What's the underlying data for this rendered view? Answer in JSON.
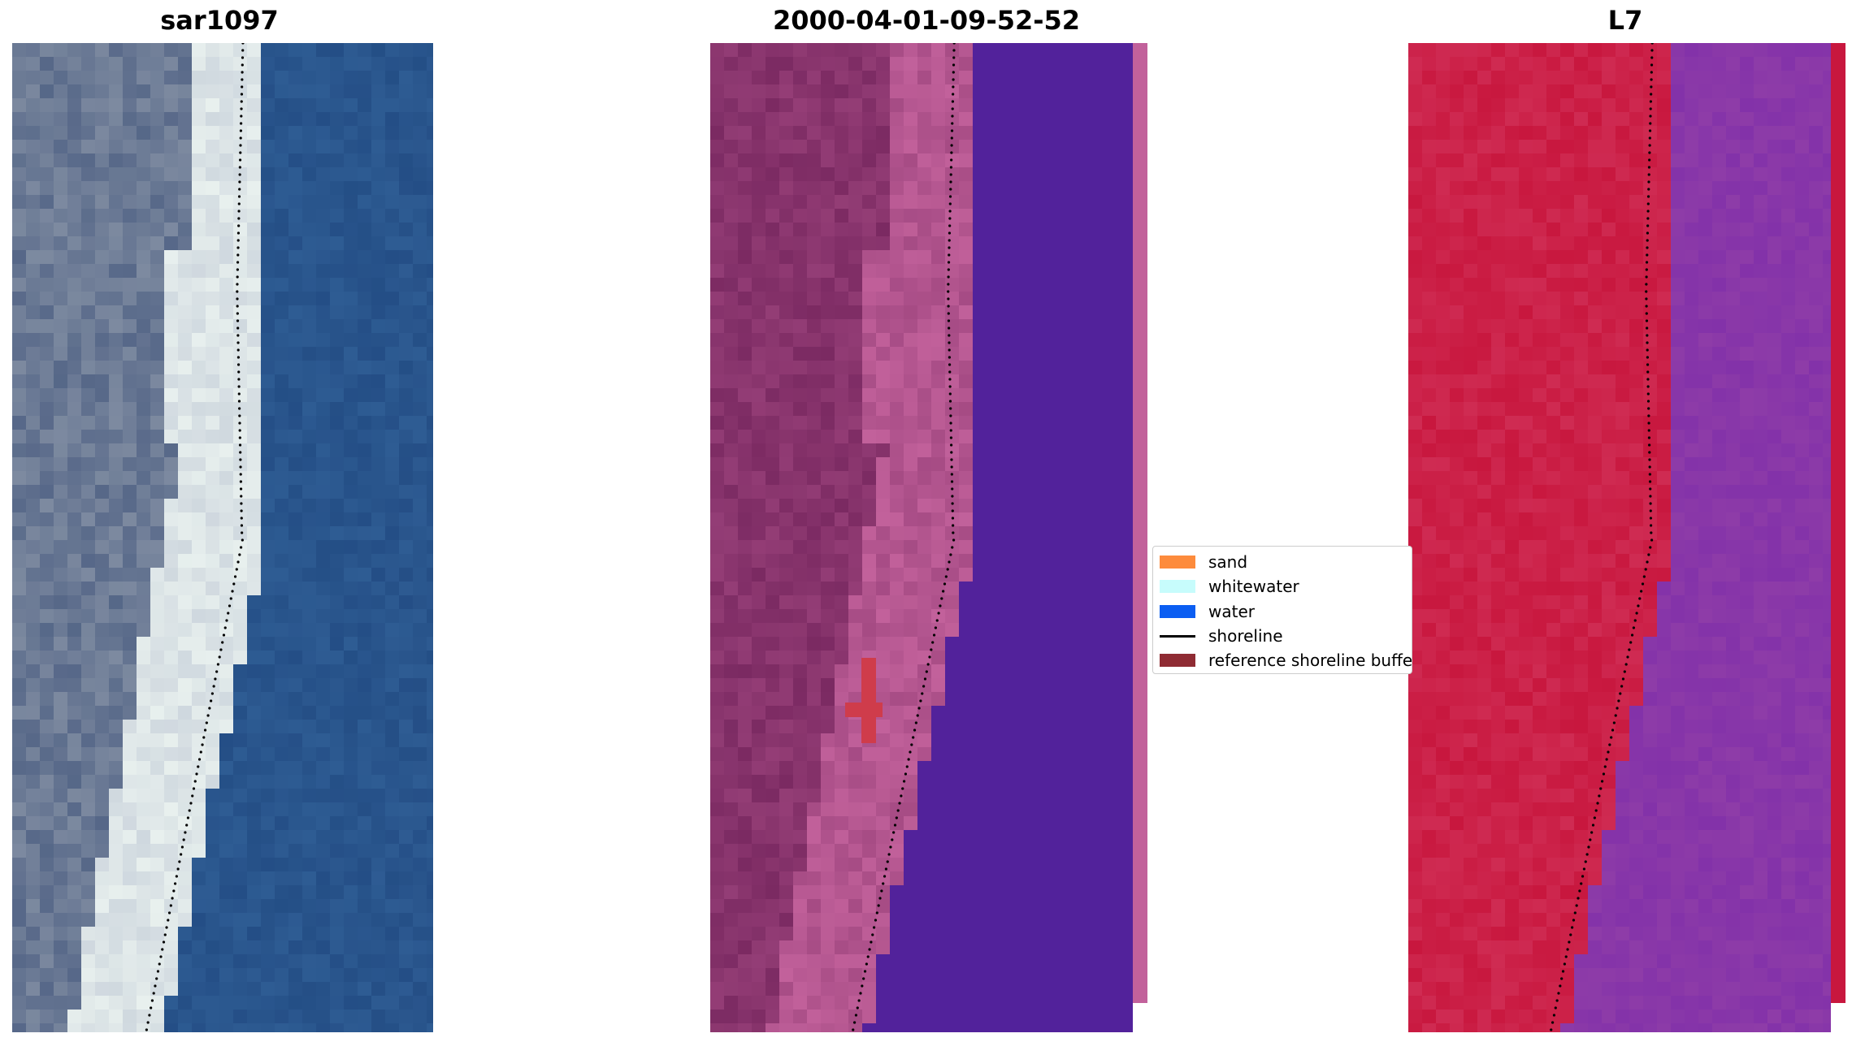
{
  "panels": [
    {
      "title": "sar1097",
      "rendering": "rgb-composite"
    },
    {
      "title": "2000-04-01-09-52-52",
      "rendering": "classified-overlay"
    },
    {
      "title": "L7",
      "rendering": "mndwi-index"
    }
  ],
  "legend": {
    "items": [
      {
        "label": "sand",
        "kind": "patch",
        "color": "#fd8b3c"
      },
      {
        "label": "whitewater",
        "kind": "patch",
        "color": "#c7fcfc"
      },
      {
        "label": "water",
        "kind": "patch",
        "color": "#0b5ef2"
      },
      {
        "label": "shoreline",
        "kind": "line",
        "color": "#000000"
      },
      {
        "label": "reference shoreline buffer",
        "kind": "patch",
        "color": "#8f2b33"
      }
    ]
  },
  "colors": {
    "rgb_water": "#2e5c93",
    "rgb_beach": "#e8f0ee",
    "rgb_land": "#7d8aa0",
    "class_land": "#7b2a62",
    "class_beach": "#c2619b",
    "class_water": "#52229b",
    "class_buffer": "#cf3c4b",
    "index_land": "#c8173e",
    "index_water": "#8e3ca8"
  }
}
